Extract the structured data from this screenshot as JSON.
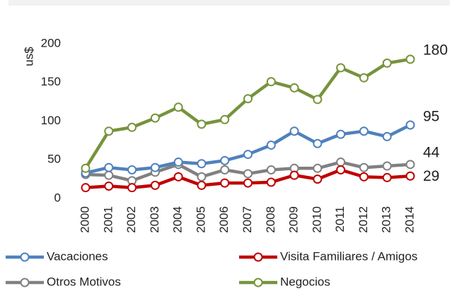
{
  "chart_data": {
    "type": "line",
    "y_label": "us$",
    "categories": [
      "2000",
      "2001",
      "2002",
      "2003",
      "2004",
      "2005",
      "2006",
      "2007",
      "2008",
      "2009",
      "2010",
      "2011",
      "2012",
      "2013",
      "2014"
    ],
    "series": [
      {
        "name": "Vacaciones",
        "color": "#4f81bd",
        "values": [
          33,
          40,
          37,
          40,
          47,
          45,
          49,
          57,
          69,
          87,
          71,
          83,
          87,
          80,
          95
        ]
      },
      {
        "name": "Visita Familiares / Amigos",
        "color": "#c00000",
        "values": [
          14,
          16,
          14,
          17,
          28,
          17,
          20,
          20,
          21,
          30,
          25,
          37,
          28,
          27,
          29
        ]
      },
      {
        "name": "Otros Motivos",
        "color": "#808080",
        "values": [
          31,
          30,
          23,
          34,
          44,
          28,
          37,
          32,
          37,
          39,
          39,
          47,
          40,
          42,
          44
        ]
      },
      {
        "name": "Negocios",
        "color": "#77933c",
        "values": [
          39,
          87,
          92,
          104,
          118,
          96,
          102,
          129,
          151,
          143,
          128,
          169,
          156,
          175,
          180
        ]
      }
    ],
    "ylim": [
      0,
      200
    ],
    "yticks": [
      0,
      50,
      100,
      150,
      200
    ],
    "grid": false
  }
}
